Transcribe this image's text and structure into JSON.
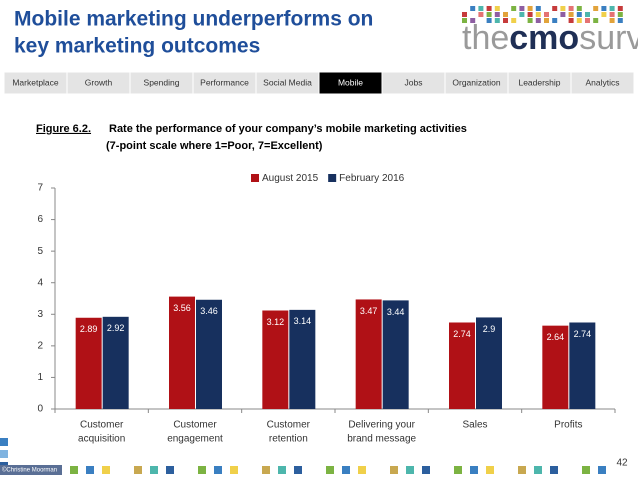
{
  "header": {
    "title": [
      "Mobile marketing underperforms on",
      "key marketing outcomes"
    ],
    "logo": [
      "the",
      "cmo",
      "survey"
    ]
  },
  "nav": {
    "tabs": [
      "Marketplace",
      "Growth",
      "Spending",
      "Performance",
      "Social Media",
      "Mobile",
      "Jobs",
      "Organization",
      "Leadership",
      "Analytics"
    ],
    "selected": "Mobile"
  },
  "figure_label": "Figure 6.2.",
  "chart_data": {
    "type": "bar",
    "title": "Rate the performance of your company’s mobile marketing activities",
    "subtitle": "(7-point scale where 1=Poor, 7=Excellent)",
    "categories": [
      [
        "Customer",
        "acquisition"
      ],
      [
        "Customer",
        "engagement"
      ],
      [
        "Customer",
        "retention"
      ],
      [
        "Delivering your",
        "brand message"
      ],
      [
        "Sales"
      ],
      [
        "Profits"
      ]
    ],
    "series": [
      {
        "name": "August 2015",
        "color": "#b01116",
        "values": [
          2.89,
          3.56,
          3.12,
          3.47,
          2.74,
          2.64
        ]
      },
      {
        "name": "February 2016",
        "color": "#17305e",
        "values": [
          2.92,
          3.46,
          3.14,
          3.44,
          2.9,
          2.74
        ]
      }
    ],
    "ylim": [
      0,
      7
    ],
    "yticks": [
      0,
      1,
      2,
      3,
      4,
      5,
      6,
      7
    ],
    "legend": "top",
    "grid": false
  },
  "footer": {
    "copyright": "©Christine Moorman",
    "page": "42"
  }
}
